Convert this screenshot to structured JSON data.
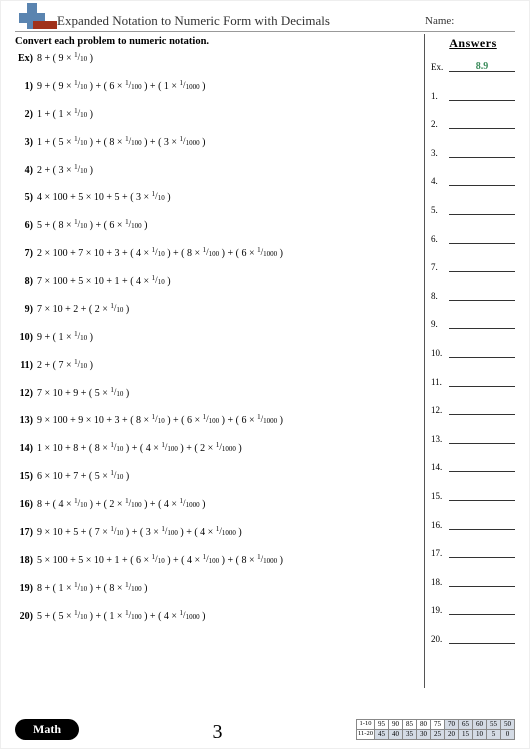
{
  "header": {
    "title": "Expanded Notation to Numeric Form with Decimals",
    "name_label": "Name:"
  },
  "instruction": "Convert each problem to numeric notation.",
  "problems": [
    {
      "num": "Ex)",
      "expr": "8 + ( 9 × {1/10} )"
    },
    {
      "num": "1)",
      "expr": "9 + ( 9 × {1/10} ) + ( 6 × {1/100} ) + ( 1 × {1/1000} )"
    },
    {
      "num": "2)",
      "expr": "1 + ( 1 × {1/10} )"
    },
    {
      "num": "3)",
      "expr": "1 + ( 5 × {1/10} ) + ( 8 × {1/100} ) + ( 3 × {1/1000} )"
    },
    {
      "num": "4)",
      "expr": "2 + ( 3 × {1/10} )"
    },
    {
      "num": "5)",
      "expr": "4 × 100 + 5 × 10 + 5 + ( 3 × {1/10} )"
    },
    {
      "num": "6)",
      "expr": "5 + ( 8 × {1/10} ) + ( 6 × {1/100} )"
    },
    {
      "num": "7)",
      "expr": "2 × 100 + 7 × 10 + 3 + ( 4 × {1/10} ) + ( 8 × {1/100} ) + ( 6 × {1/1000} )"
    },
    {
      "num": "8)",
      "expr": "7 × 100 + 5 × 10 + 1 + ( 4 × {1/10} )"
    },
    {
      "num": "9)",
      "expr": "7 × 10 + 2 + ( 2 × {1/10} )"
    },
    {
      "num": "10)",
      "expr": "9 + ( 1 × {1/10} )"
    },
    {
      "num": "11)",
      "expr": "2 + ( 7 × {1/10} )"
    },
    {
      "num": "12)",
      "expr": "7 × 10 + 9 + ( 5 × {1/10} )"
    },
    {
      "num": "13)",
      "expr": "9 × 100 + 9 × 10 + 3 + ( 8 × {1/10} ) + ( 6 × {1/100} ) + ( 6 × {1/1000} )"
    },
    {
      "num": "14)",
      "expr": "1 × 10 + 8 + ( 8 × {1/10} ) + ( 4 × {1/100} ) + ( 2 × {1/1000} )"
    },
    {
      "num": "15)",
      "expr": "6 × 10 + 7 + ( 5 × {1/10} )"
    },
    {
      "num": "16)",
      "expr": "8 + ( 4 × {1/10} ) + ( 2 × {1/100} ) + ( 4 × {1/1000} )"
    },
    {
      "num": "17)",
      "expr": "9 × 10 + 5 + ( 7 × {1/10} ) + ( 3 × {1/100} ) + ( 4 × {1/1000} )"
    },
    {
      "num": "18)",
      "expr": "5 × 100 + 5 × 10 + 1 + ( 6 × {1/10} ) + ( 4 × {1/100} ) + ( 8 × {1/1000} )"
    },
    {
      "num": "19)",
      "expr": "8 + ( 1 × {1/10} ) + ( 8 × {1/100} )"
    },
    {
      "num": "20)",
      "expr": "5 + ( 5 × {1/10} ) + ( 1 × {1/100} ) + ( 4 × {1/1000} )"
    }
  ],
  "answers": {
    "title": "Answers",
    "rows": [
      {
        "label": "Ex.",
        "value": "8.9"
      },
      {
        "label": "1.",
        "value": ""
      },
      {
        "label": "2.",
        "value": ""
      },
      {
        "label": "3.",
        "value": ""
      },
      {
        "label": "4.",
        "value": ""
      },
      {
        "label": "5.",
        "value": ""
      },
      {
        "label": "6.",
        "value": ""
      },
      {
        "label": "7.",
        "value": ""
      },
      {
        "label": "8.",
        "value": ""
      },
      {
        "label": "9.",
        "value": ""
      },
      {
        "label": "10.",
        "value": ""
      },
      {
        "label": "11.",
        "value": ""
      },
      {
        "label": "12.",
        "value": ""
      },
      {
        "label": "13.",
        "value": ""
      },
      {
        "label": "14.",
        "value": ""
      },
      {
        "label": "15.",
        "value": ""
      },
      {
        "label": "16.",
        "value": ""
      },
      {
        "label": "17.",
        "value": ""
      },
      {
        "label": "18.",
        "value": ""
      },
      {
        "label": "19.",
        "value": ""
      },
      {
        "label": "20.",
        "value": ""
      }
    ]
  },
  "footer": {
    "badge": "Math",
    "page": "3",
    "score_rows": [
      {
        "label": "1-10",
        "cells": [
          "95",
          "90",
          "85",
          "80",
          "75",
          "70",
          "65",
          "60",
          "55",
          "50"
        ],
        "shaded_from": 5
      },
      {
        "label": "11-20",
        "cells": [
          "45",
          "40",
          "35",
          "30",
          "25",
          "20",
          "15",
          "10",
          "5",
          "0"
        ],
        "shaded_from": 0
      }
    ]
  },
  "colors": {
    "answer_green": "#3c8c5c",
    "logo_blue": "#5a84b0",
    "logo_red": "#a0311a",
    "shade": "#d4dbe5"
  }
}
